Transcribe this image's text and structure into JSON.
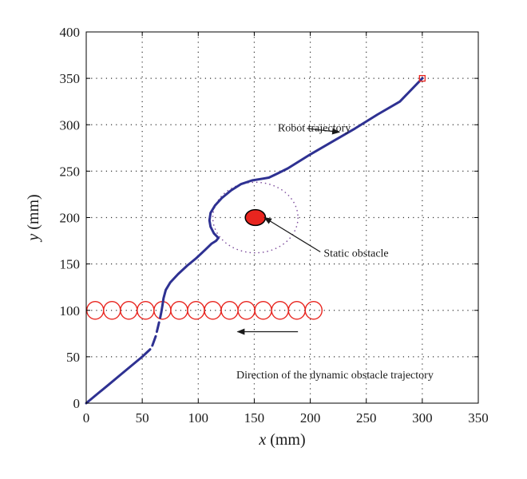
{
  "chart_data": {
    "type": "line",
    "xlabel": {
      "var": "x",
      "unit": " (mm)"
    },
    "ylabel": {
      "var": "y",
      "unit": " (mm)"
    },
    "xlim": [
      0,
      350
    ],
    "ylim": [
      0,
      400
    ],
    "xticks": [
      0,
      50,
      100,
      150,
      200,
      250,
      300,
      350
    ],
    "yticks": [
      0,
      50,
      100,
      150,
      200,
      250,
      300,
      350,
      400
    ],
    "grid": "dotted",
    "series": [
      {
        "role": "robot-trajectory",
        "color": "#2e3192",
        "segments": [
          [
            [
              0,
              0
            ],
            [
              10,
              10
            ],
            [
              20,
              20
            ],
            [
              30,
              30
            ],
            [
              40,
              40
            ],
            [
              50,
              50
            ],
            [
              57,
              58
            ]
          ],
          [
            [
              59,
              62
            ],
            [
              62,
              72
            ]
          ],
          [
            [
              63,
              77
            ],
            [
              65,
              87
            ]
          ],
          [
            [
              66,
              92
            ],
            [
              67,
              98
            ],
            [
              68,
              105
            ],
            [
              69,
              113
            ],
            [
              71,
              122
            ],
            [
              75,
              130
            ],
            [
              82,
              139
            ],
            [
              90,
              148
            ],
            [
              98,
              156
            ],
            [
              106,
              165
            ],
            [
              112,
              172
            ],
            [
              116,
              175
            ],
            [
              118,
              178
            ],
            [
              114,
              183
            ],
            [
              111,
              190
            ],
            [
              110,
              197
            ],
            [
              111,
              205
            ],
            [
              115,
              213
            ],
            [
              121,
              221
            ],
            [
              129,
              229
            ],
            [
              138,
              236
            ],
            [
              148,
              240
            ],
            [
              158,
              242
            ],
            [
              163,
              243
            ],
            [
              170,
              247
            ],
            [
              180,
              253
            ],
            [
              200,
              268
            ],
            [
              220,
              282
            ],
            [
              240,
              296
            ],
            [
              260,
              311
            ],
            [
              280,
              325
            ],
            [
              300,
              350
            ]
          ]
        ]
      }
    ],
    "static_obstacle": {
      "center": [
        151,
        200
      ],
      "rx": 9,
      "ry": 8.5,
      "fill": "#e8251f",
      "safety_radius": 38,
      "safety_color": "#7b4a9b"
    },
    "dynamic_obstacle": {
      "y": 100,
      "x_centers": [
        8,
        23,
        38,
        53,
        68,
        83,
        98,
        113,
        128,
        143,
        158,
        173,
        188,
        203
      ],
      "rx": 7.5,
      "ry": 9.5,
      "color": "#e8251f"
    },
    "goal_marker": {
      "point": [
        300,
        350
      ],
      "color": "#e8251f"
    },
    "annotations": [
      {
        "id": "robot",
        "text": "Robot trajectory",
        "text_at": [
          171,
          297
        ],
        "arrow_from": [
          197,
          296
        ],
        "arrow_to": [
          226,
          292
        ]
      },
      {
        "id": "static",
        "text": "Static obstacle",
        "text_at": [
          212,
          162
        ],
        "arrow_from": [
          209,
          163
        ],
        "arrow_to": [
          159,
          200
        ]
      },
      {
        "id": "direction",
        "text": "Direction of the dynamic obstacle trajectory",
        "text_at": [
          134,
          31
        ],
        "arrow_from": [
          189,
          77
        ],
        "arrow_to": [
          135,
          77
        ]
      }
    ]
  }
}
